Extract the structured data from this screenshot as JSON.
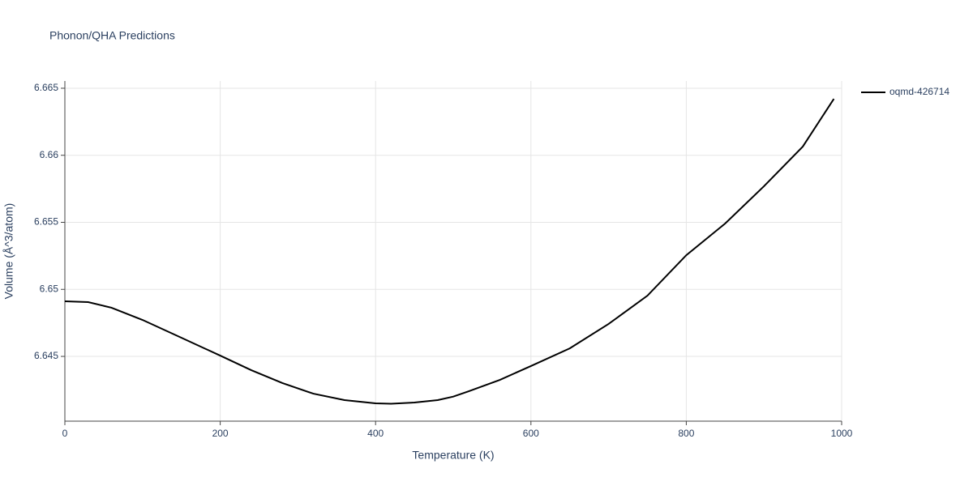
{
  "chart_data": {
    "type": "line",
    "title": "Phonon/QHA Predictions",
    "x_label": "Temperature (K)",
    "y_label": "Volume (Å^3/atom)",
    "x": [
      0,
      30,
      60,
      100,
      150,
      200,
      240,
      280,
      320,
      360,
      400,
      420,
      450,
      480,
      500,
      520,
      560,
      600,
      650,
      700,
      750,
      800,
      850,
      900,
      950,
      990
    ],
    "series": [
      {
        "name": "oqmd-426714",
        "color": "#000000",
        "values": [
          6.64911,
          6.64905,
          6.64863,
          6.64772,
          6.64639,
          6.64506,
          6.64397,
          6.64301,
          6.64222,
          6.64174,
          6.6415,
          6.64147,
          6.64156,
          6.64174,
          6.642,
          6.6424,
          6.64325,
          6.64428,
          6.6456,
          6.64742,
          6.64953,
          6.65255,
          6.65491,
          6.65769,
          6.66065,
          6.66421
        ]
      }
    ],
    "xlim": [
      0,
      1000
    ],
    "xticks": [
      0,
      200,
      400,
      600,
      800,
      1000
    ],
    "ylim": [
      6.64017,
      6.66554
    ],
    "yticks": [
      6.645,
      6.65,
      6.655,
      6.66,
      6.665
    ],
    "grid": true
  }
}
